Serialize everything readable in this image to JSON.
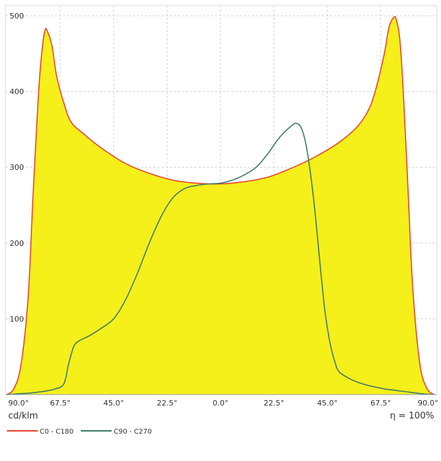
{
  "chart_data": {
    "type": "area",
    "ylim": [
      0,
      500
    ],
    "y_ticks": [
      "100",
      "200",
      "300",
      "400",
      "500"
    ],
    "x_ticks": [
      "90.0°",
      "67.5°",
      "45.0°",
      "22.5°",
      "0.0°",
      "22.5°",
      "45.0°",
      "67.5°",
      "90.0°"
    ],
    "xlim": [
      -90,
      90
    ],
    "ylabel": "cd/klm",
    "efficiency": "η = 100%",
    "grid": true,
    "legend_position": "bottom-left",
    "series": [
      {
        "name": "C0 - C180",
        "color": "#e8452c",
        "fill": "#f5ef1a",
        "x": [
          -90,
          -87,
          -84,
          -81,
          -79,
          -77,
          -75.5,
          -74,
          -73,
          -71,
          -69,
          -66,
          -63,
          -58,
          -50,
          -40,
          -30,
          -20,
          -10,
          0,
          10,
          20,
          30,
          40,
          50,
          58,
          63,
          66,
          69,
          71,
          73,
          74,
          75.5,
          77,
          79,
          81,
          84,
          87,
          90
        ],
        "values": [
          0,
          8,
          40,
          130,
          260,
          380,
          445,
          480,
          480,
          460,
          420,
          385,
          360,
          345,
          325,
          305,
          292,
          283,
          279,
          278,
          281,
          287,
          299,
          314,
          333,
          355,
          380,
          410,
          450,
          485,
          498,
          495,
          470,
          400,
          270,
          140,
          40,
          8,
          0
        ]
      },
      {
        "name": "C90 - C270",
        "color": "#3a7a6a",
        "x": [
          -90,
          -85,
          -80,
          -75,
          -70,
          -66,
          -64,
          -62,
          -60,
          -55,
          -50,
          -45,
          -40,
          -35,
          -30,
          -25,
          -20,
          -15,
          -10,
          -5,
          0,
          5,
          10,
          15,
          20,
          25,
          30,
          32,
          34,
          36,
          38,
          40,
          42,
          44,
          46,
          48,
          50,
          55,
          60,
          65,
          70,
          75,
          80,
          85,
          90
        ],
        "values": [
          0,
          1,
          2,
          4,
          7,
          14,
          40,
          62,
          70,
          78,
          88,
          100,
          125,
          160,
          200,
          235,
          260,
          272,
          276,
          278,
          279,
          283,
          290,
          300,
          318,
          340,
          355,
          358,
          352,
          330,
          290,
          235,
          170,
          110,
          70,
          45,
          30,
          20,
          14,
          10,
          7,
          5,
          3,
          1,
          0
        ]
      }
    ]
  }
}
